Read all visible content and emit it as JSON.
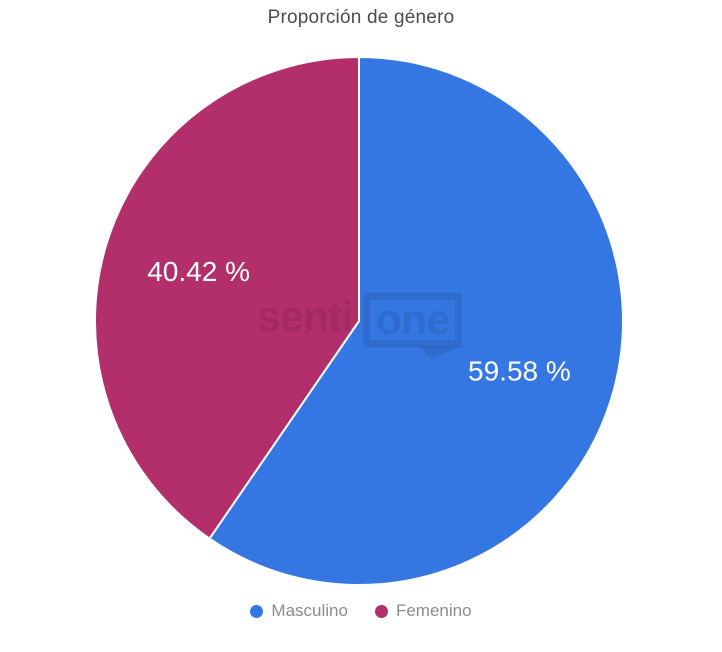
{
  "chart_data": {
    "type": "pie",
    "title": "Proporción de género",
    "categories": [
      "Masculino",
      "Femenino"
    ],
    "values": [
      59.58,
      40.42
    ],
    "colors": [
      "#3477E2",
      "#B32F6B"
    ],
    "slice_labels": [
      "59.58 %",
      "40.42 %"
    ],
    "label_format": "{value} %",
    "start_angle_deg": 0,
    "direction": "clockwise",
    "legend_position": "bottom",
    "slice_label_color": "#ffffff",
    "slice_border_color": "#ffffff",
    "title_color": "#4d4d4d",
    "legend_text_color": "#8c8c8c",
    "background_color": "#ffffff"
  },
  "watermark": {
    "text": "senti",
    "boxed_text": "one"
  }
}
